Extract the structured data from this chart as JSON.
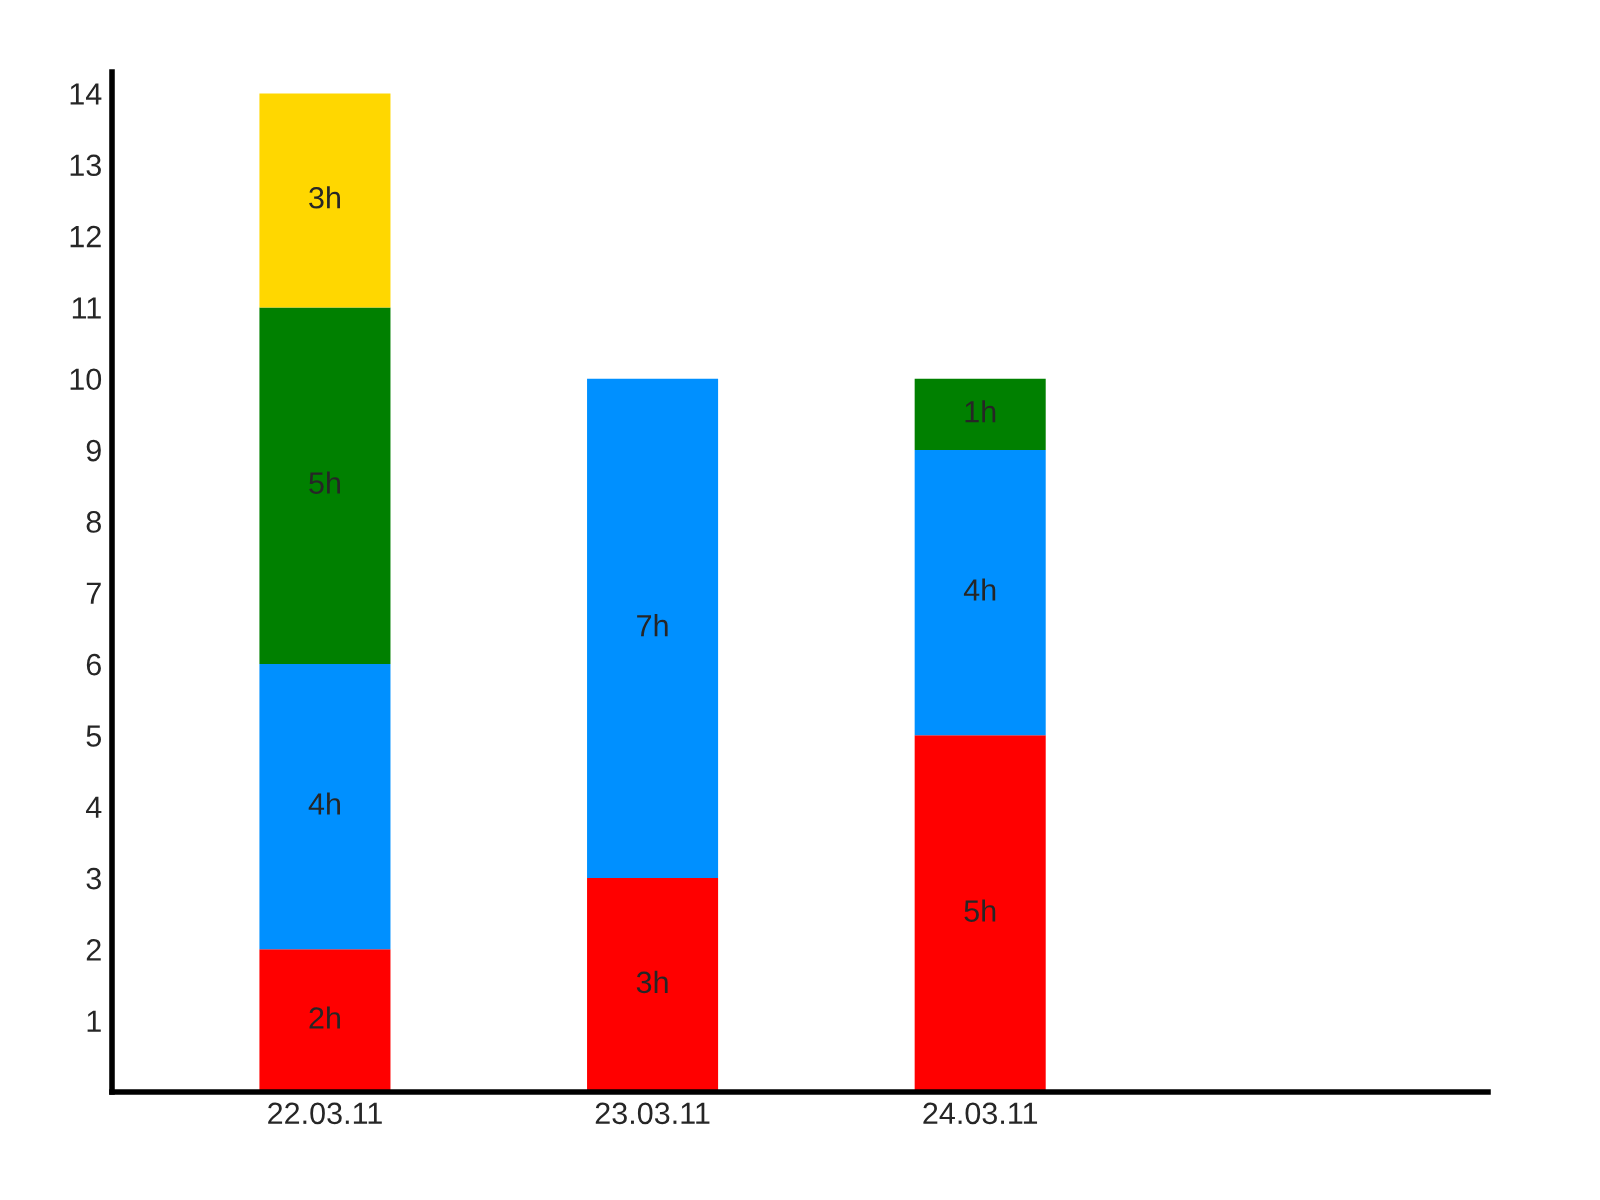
{
  "chart_data": {
    "type": "bar",
    "stacked": true,
    "categories": [
      "22.03.11",
      "23.03.11",
      "24.03.11"
    ],
    "series": [
      {
        "color": "#ff0000",
        "values": [
          2,
          3,
          5
        ],
        "value_labels": [
          "2h",
          "3h",
          "5h"
        ]
      },
      {
        "color": "#0090ff",
        "values": [
          4,
          7,
          4
        ],
        "value_labels": [
          "4h",
          "7h",
          "4h"
        ]
      },
      {
        "color": "#008000",
        "values": [
          5,
          null,
          1
        ],
        "value_labels": [
          "5h",
          null,
          "1h"
        ]
      },
      {
        "color": "#ffd700",
        "values": [
          3,
          null,
          null
        ],
        "value_labels": [
          "3h",
          null,
          null
        ]
      }
    ],
    "ylim": [
      0,
      14.3
    ],
    "yticks": [
      1,
      2,
      3,
      4,
      5,
      6,
      7,
      8,
      9,
      10,
      11,
      12,
      13,
      14
    ],
    "grid": false,
    "legend": false
  }
}
